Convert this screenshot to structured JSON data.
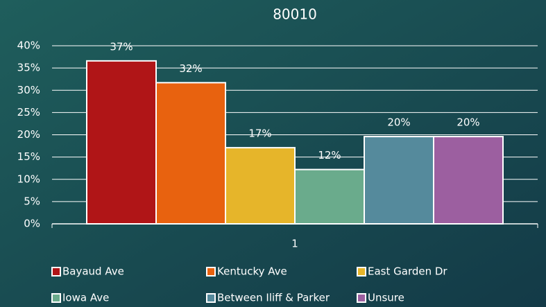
{
  "chart_data": {
    "type": "bar",
    "title": "80010",
    "categories": [
      "1"
    ],
    "series": [
      {
        "name": "Bayaud Ave",
        "color": "#b01517",
        "values": [
          36.6
        ],
        "value_labels": [
          "37%"
        ]
      },
      {
        "name": "Kentucky Ave",
        "color": "#e8620f",
        "values": [
          31.7
        ],
        "value_labels": [
          "32%"
        ]
      },
      {
        "name": "East Garden Dr",
        "color": "#e6b52a",
        "values": [
          17.1
        ],
        "value_labels": [
          "17%"
        ]
      },
      {
        "name": "Iowa Ave",
        "color": "#6aab8c",
        "values": [
          12.2
        ],
        "value_labels": [
          "12%"
        ]
      },
      {
        "name": "Between Iliff & Parker",
        "color": "#558a9c",
        "values": [
          19.6
        ],
        "value_labels": [
          "20%"
        ]
      },
      {
        "name": "Unsure",
        "color": "#9c5fa0",
        "values": [
          19.6
        ],
        "value_labels": [
          "20%"
        ]
      }
    ],
    "ylim": [
      0,
      40
    ],
    "yticks": [
      {
        "value": 0,
        "label": "0%"
      },
      {
        "value": 5,
        "label": "5%"
      },
      {
        "value": 10,
        "label": "10%"
      },
      {
        "value": 15,
        "label": "15%"
      },
      {
        "value": 20,
        "label": "20%"
      },
      {
        "value": 25,
        "label": "25%"
      },
      {
        "value": 30,
        "label": "30%"
      },
      {
        "value": 35,
        "label": "35%"
      },
      {
        "value": 40,
        "label": "40%"
      }
    ],
    "grid": true,
    "legend": "bottom"
  }
}
